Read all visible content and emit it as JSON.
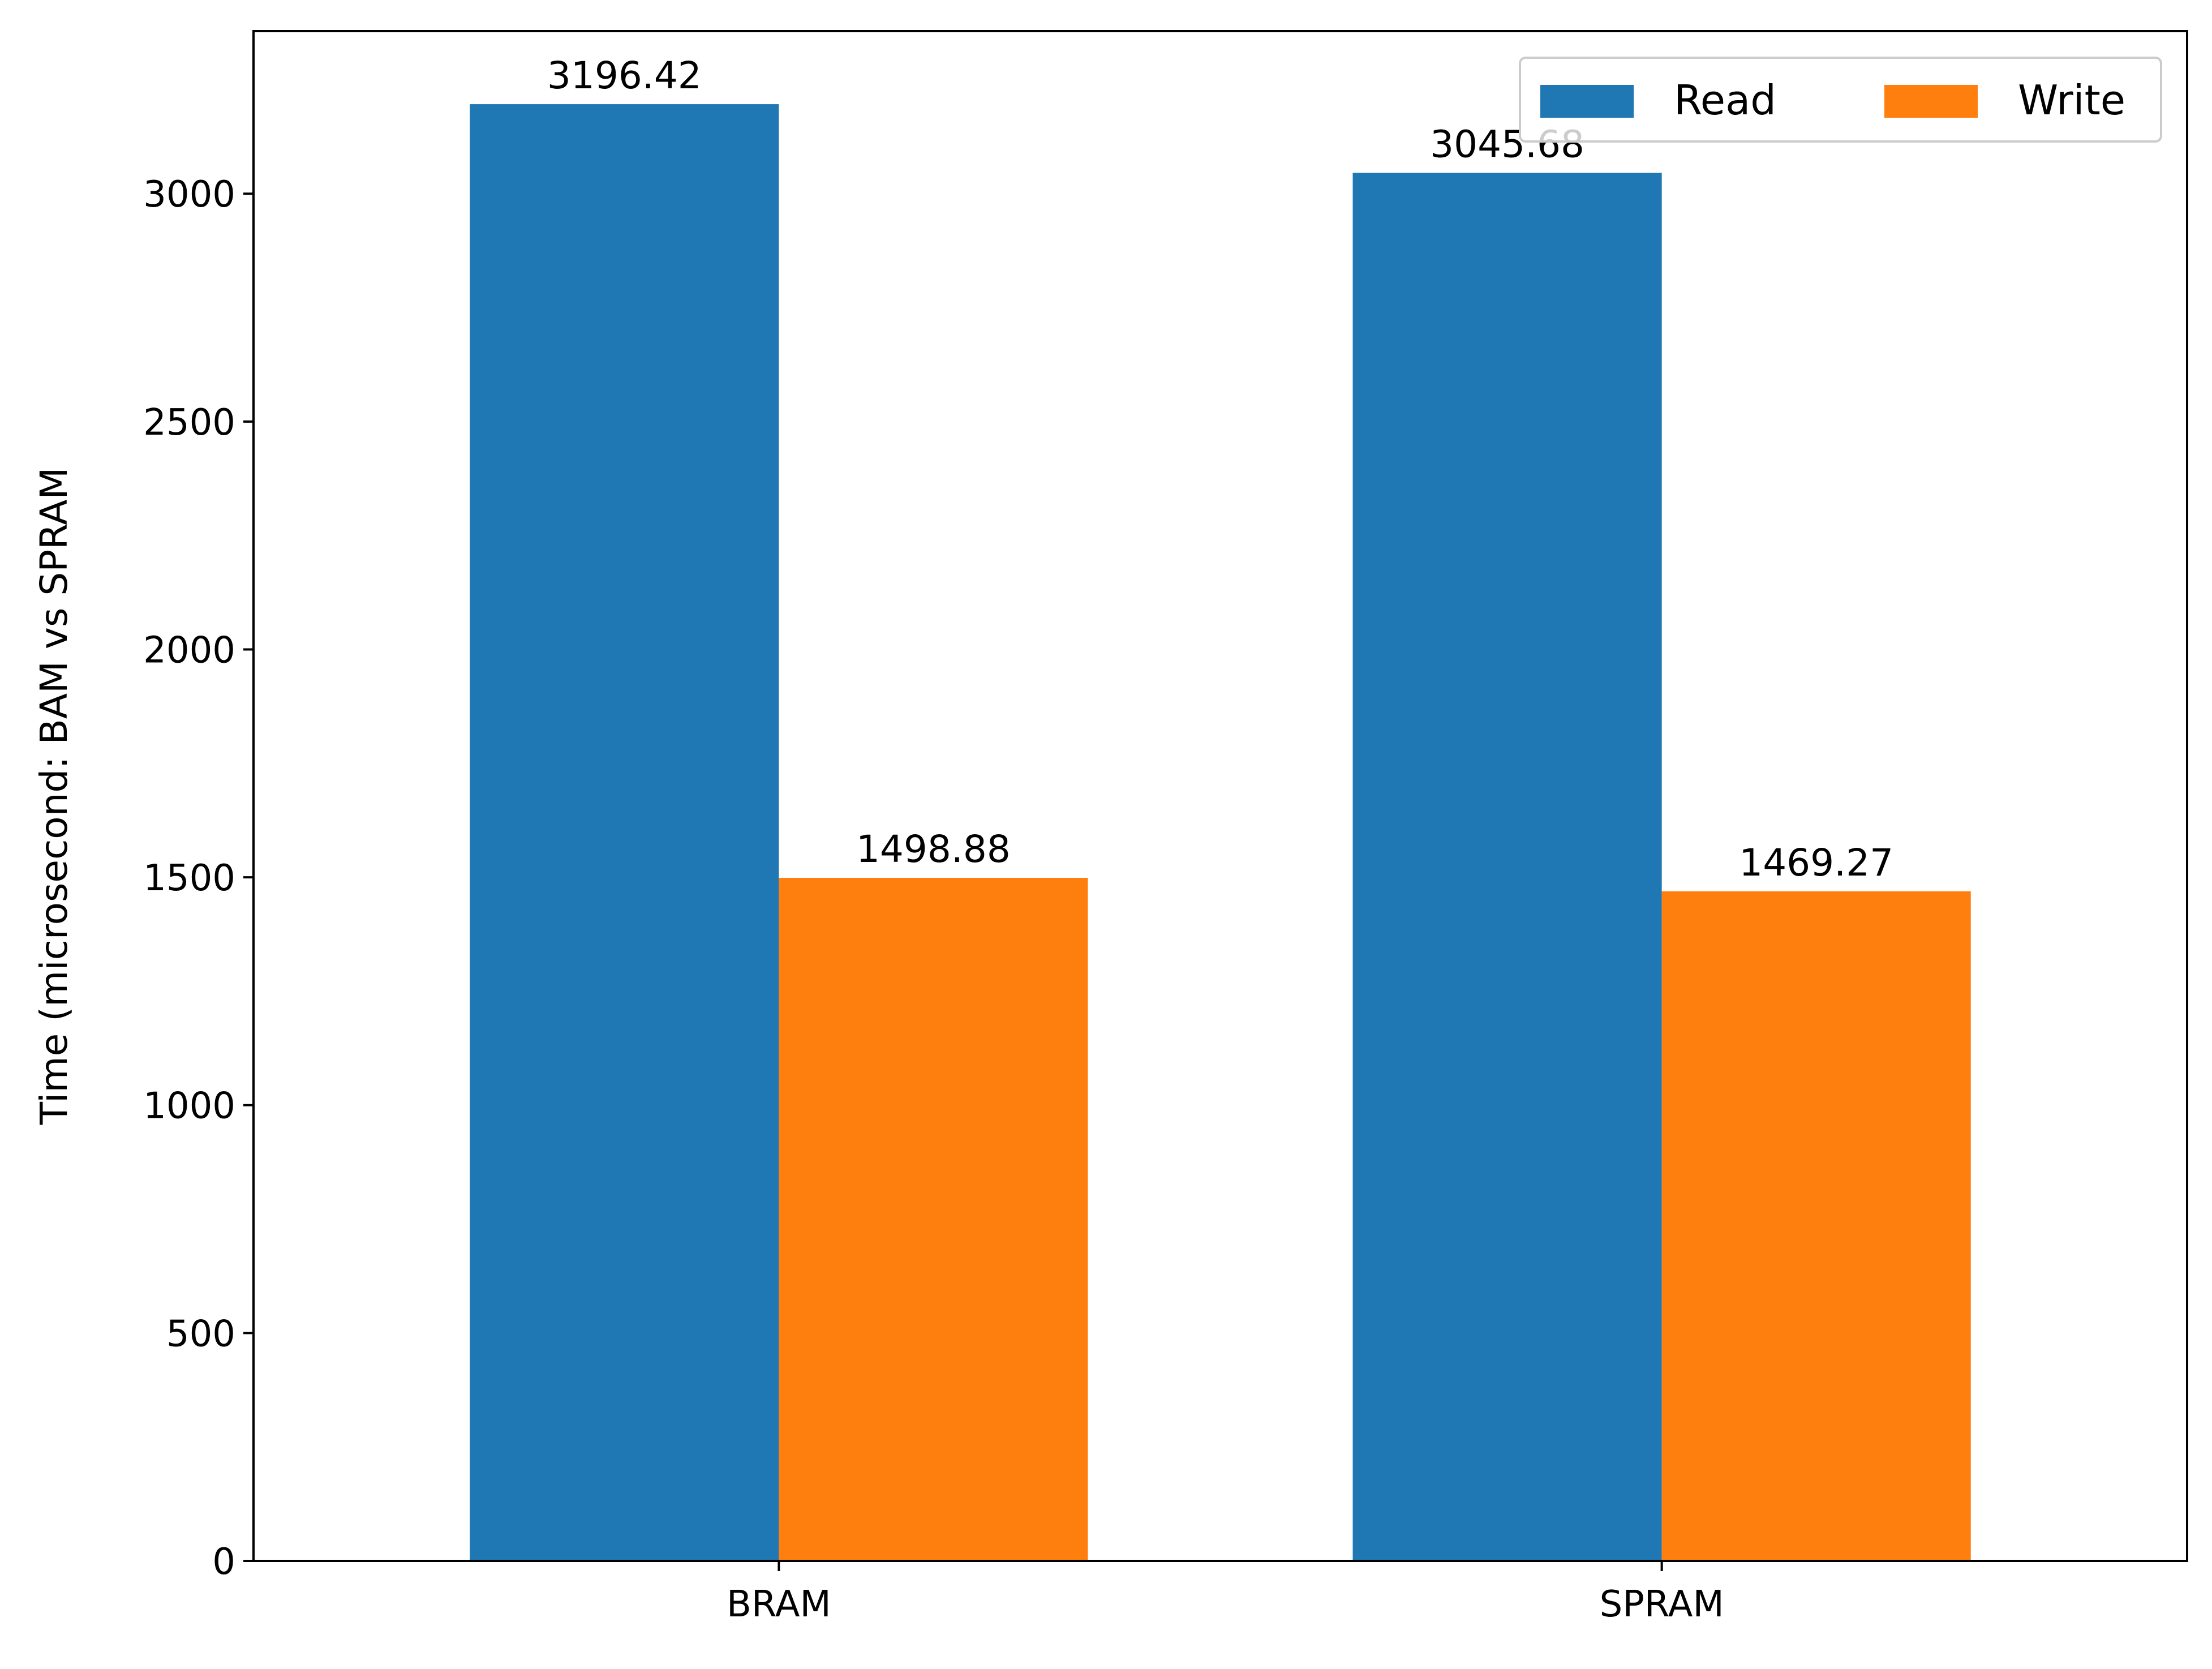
{
  "chart_data": {
    "type": "bar",
    "categories": [
      "BRAM",
      "SPRAM"
    ],
    "series": [
      {
        "name": "Read",
        "values": [
          3196.42,
          3045.68
        ],
        "color": "#1f77b4"
      },
      {
        "name": "Write",
        "values": [
          1498.88,
          1469.27
        ],
        "color": "#ff7f0e"
      }
    ],
    "data_labels": [
      [
        "3196.42",
        "3045.68"
      ],
      [
        "1498.88",
        "1469.27"
      ]
    ],
    "ylabel": "Time (microsecond: BAM vs SPRAM",
    "ylim": [
      0,
      3356.7
    ],
    "yticks": [
      0,
      500,
      1000,
      1500,
      2000,
      2500,
      3000
    ],
    "grid": false,
    "legend": {
      "placement": "top-right",
      "columns": 2
    }
  }
}
